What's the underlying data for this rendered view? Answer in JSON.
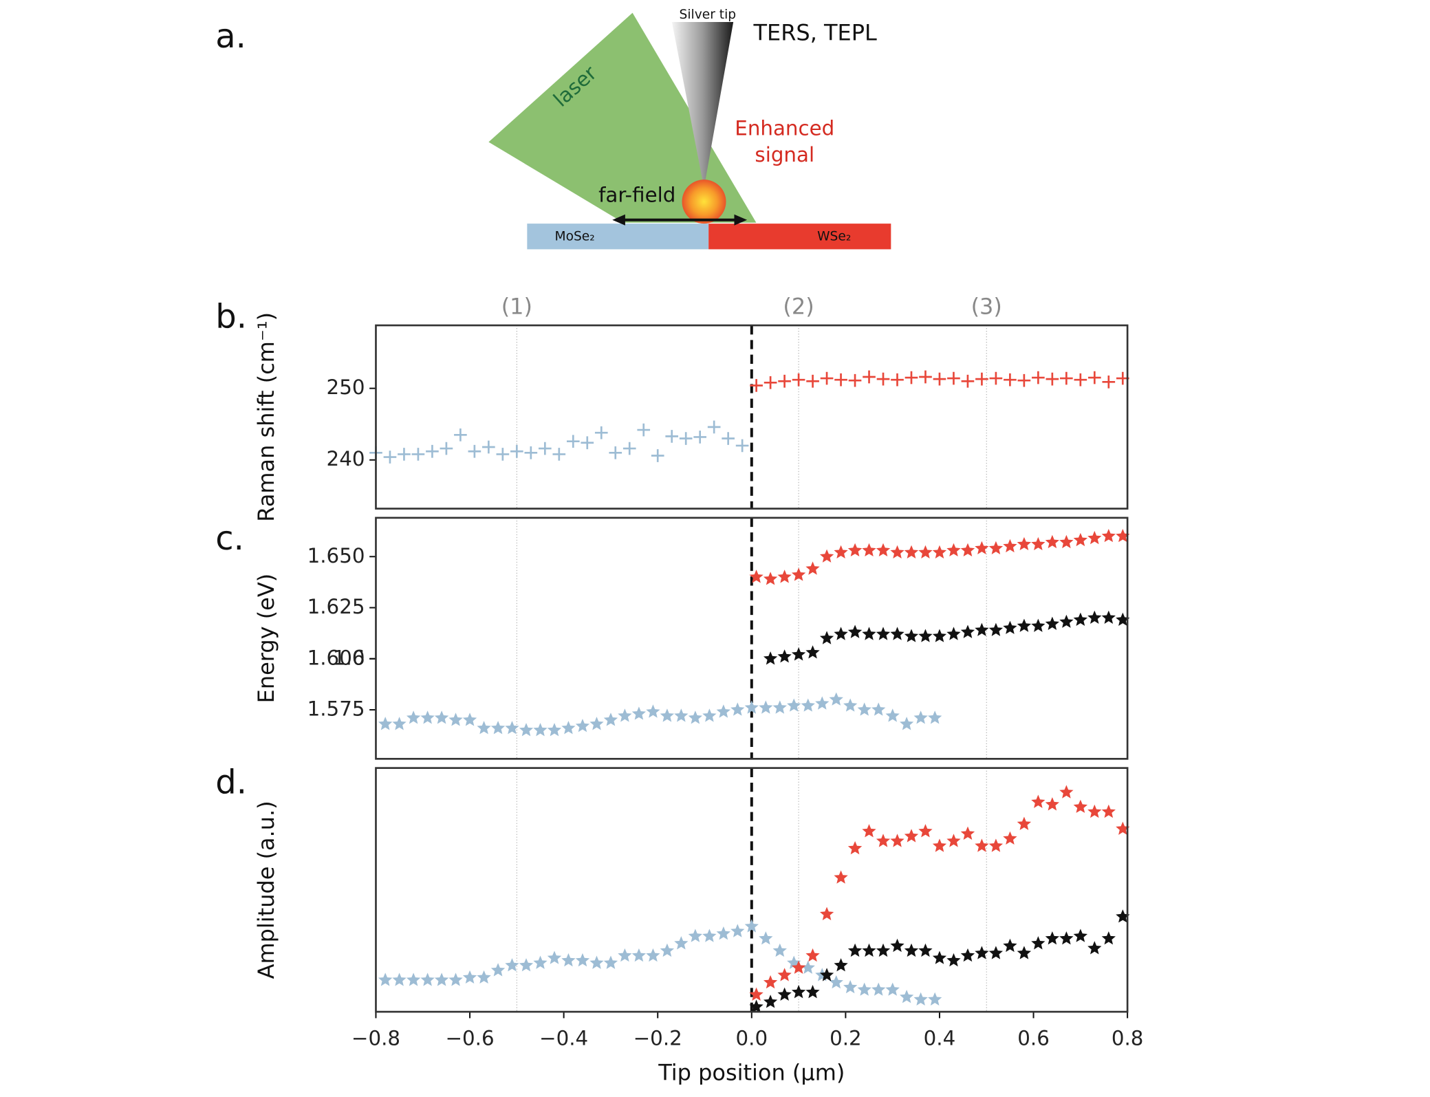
{
  "panel_labels": [
    "a.",
    "b.",
    "c.",
    "d."
  ],
  "diagram": {
    "tip": "Silver tip",
    "method": "TERS, TEPL",
    "laser": "laser",
    "signal": [
      "Enhanced",
      "signal"
    ],
    "far_field": "far-field",
    "left_material": "MoSe₂",
    "right_material": "WSe₂"
  },
  "chart_data": [
    {
      "type": "scatter",
      "ylabel": "Raman shift (cm⁻¹)",
      "xlim": [
        -0.8,
        0.8
      ],
      "ylim": [
        233.2,
        258.8
      ],
      "yticks": [
        240,
        250
      ],
      "guides": [
        -0.5,
        0.1,
        0.5
      ],
      "boundary": 0,
      "regions": [
        {
          "x": -0.5,
          "label": "(1)"
        },
        {
          "x": 0.1,
          "label": "(2)"
        },
        {
          "x": 0.5,
          "label": "(3)"
        }
      ],
      "series": [
        {
          "color": "#9dbcd4",
          "marker": "plus",
          "x": [
            -0.8,
            -0.77,
            -0.74,
            -0.71,
            -0.68,
            -0.65,
            -0.62,
            -0.59,
            -0.56,
            -0.53,
            -0.5,
            -0.47,
            -0.44,
            -0.41,
            -0.38,
            -0.35,
            -0.32,
            -0.29,
            -0.26,
            -0.23,
            -0.2,
            -0.17,
            -0.14,
            -0.11,
            -0.08,
            -0.05,
            -0.02
          ],
          "values": [
            241,
            240.4,
            240.8,
            240.8,
            241.2,
            241.6,
            243.5,
            241.2,
            241.8,
            240.8,
            241.2,
            241.0,
            241.6,
            240.8,
            242.6,
            242.4,
            243.8,
            241.0,
            241.6,
            244.2,
            240.6,
            243.3,
            243.0,
            243.2,
            244.6,
            243.0,
            242.0
          ]
        },
        {
          "color": "#e8473a",
          "marker": "plus",
          "x": [
            0.01,
            0.04,
            0.07,
            0.1,
            0.13,
            0.16,
            0.19,
            0.22,
            0.25,
            0.28,
            0.31,
            0.34,
            0.37,
            0.4,
            0.43,
            0.46,
            0.49,
            0.52,
            0.55,
            0.58,
            0.61,
            0.64,
            0.67,
            0.7,
            0.73,
            0.76,
            0.79
          ],
          "values": [
            250.4,
            250.8,
            251.0,
            251.2,
            251.0,
            251.4,
            251.2,
            251.1,
            251.6,
            251.3,
            251.2,
            251.5,
            251.6,
            251.3,
            251.4,
            251.0,
            251.3,
            251.4,
            251.2,
            251.1,
            251.5,
            251.3,
            251.4,
            251.2,
            251.5,
            250.9,
            251.4
          ]
        }
      ]
    },
    {
      "type": "scatter",
      "ylabel": "Energy (eV)",
      "xlim": [
        -0.8,
        0.8
      ],
      "ylim": [
        1.551,
        1.669
      ],
      "yticks": [
        1.575,
        1.6,
        {
          "value": 1.6,
          "label": "1.600"
        },
        1.625,
        {
          "value": 1.65,
          "label": "1.650"
        }
      ],
      "guides": [
        -0.5,
        0.1,
        0.5
      ],
      "boundary": 0,
      "series": [
        {
          "color": "#9dbcd4",
          "marker": "star",
          "x": [
            -0.78,
            -0.75,
            -0.72,
            -0.69,
            -0.66,
            -0.63,
            -0.6,
            -0.57,
            -0.54,
            -0.51,
            -0.48,
            -0.45,
            -0.42,
            -0.39,
            -0.36,
            -0.33,
            -0.3,
            -0.27,
            -0.24,
            -0.21,
            -0.18,
            -0.15,
            -0.12,
            -0.09,
            -0.06,
            -0.03,
            0,
            0.03,
            0.06,
            0.09,
            0.12,
            0.15,
            0.18,
            0.21,
            0.24,
            0.27,
            0.3,
            0.33,
            0.36,
            0.39
          ],
          "values": [
            1.568,
            1.568,
            1.571,
            1.571,
            1.571,
            1.57,
            1.57,
            1.566,
            1.566,
            1.566,
            1.565,
            1.565,
            1.565,
            1.566,
            1.567,
            1.568,
            1.57,
            1.572,
            1.573,
            1.574,
            1.572,
            1.572,
            1.571,
            1.572,
            1.574,
            1.575,
            1.576,
            1.576,
            1.576,
            1.577,
            1.577,
            1.578,
            1.58,
            1.577,
            1.575,
            1.575,
            1.572,
            1.568,
            1.571,
            1.571
          ]
        },
        {
          "color": "#e8473a",
          "marker": "star",
          "x": [
            0.01,
            0.04,
            0.07,
            0.1,
            0.13,
            0.16,
            0.19,
            0.22,
            0.25,
            0.28,
            0.31,
            0.34,
            0.37,
            0.4,
            0.43,
            0.46,
            0.49,
            0.52,
            0.55,
            0.58,
            0.61,
            0.64,
            0.67,
            0.7,
            0.73,
            0.76,
            0.79
          ],
          "values": [
            1.64,
            1.639,
            1.64,
            1.641,
            1.644,
            1.65,
            1.652,
            1.653,
            1.653,
            1.653,
            1.652,
            1.652,
            1.652,
            1.652,
            1.653,
            1.653,
            1.654,
            1.654,
            1.655,
            1.656,
            1.656,
            1.657,
            1.657,
            1.658,
            1.659,
            1.66,
            1.66
          ]
        },
        {
          "color": "#111111",
          "marker": "star",
          "x": [
            0.04,
            0.07,
            0.1,
            0.13,
            0.16,
            0.19,
            0.22,
            0.25,
            0.28,
            0.31,
            0.34,
            0.37,
            0.4,
            0.43,
            0.46,
            0.49,
            0.52,
            0.55,
            0.58,
            0.61,
            0.64,
            0.67,
            0.7,
            0.73,
            0.76,
            0.79
          ],
          "values": [
            1.6,
            1.601,
            1.602,
            1.603,
            1.61,
            1.612,
            1.613,
            1.612,
            1.612,
            1.612,
            1.611,
            1.611,
            1.611,
            1.612,
            1.613,
            1.614,
            1.614,
            1.615,
            1.616,
            1.616,
            1.617,
            1.618,
            1.619,
            1.62,
            1.62,
            1.619
          ]
        }
      ]
    },
    {
      "type": "scatter",
      "ylabel": "Amplitude (a.u.)",
      "xlabel": "Tip position (μm)",
      "xlim": [
        -0.8,
        0.8
      ],
      "ylim": [
        0,
        1
      ],
      "xticks": [
        {
          "value": -0.8,
          "label": "−0.8"
        },
        {
          "value": -0.6,
          "label": "−0.6"
        },
        {
          "value": -0.4,
          "label": "−0.4"
        },
        {
          "value": -0.2,
          "label": "−0.2"
        },
        {
          "value": 0,
          "label": "0.0"
        },
        0.2,
        0.4,
        0.6,
        0.8
      ],
      "guides": [
        -0.5,
        0.1,
        0.5
      ],
      "boundary": 0,
      "series": [
        {
          "color": "#9dbcd4",
          "marker": "star",
          "x": [
            -0.78,
            -0.75,
            -0.72,
            -0.69,
            -0.66,
            -0.63,
            -0.6,
            -0.57,
            -0.54,
            -0.51,
            -0.48,
            -0.45,
            -0.42,
            -0.39,
            -0.36,
            -0.33,
            -0.3,
            -0.27,
            -0.24,
            -0.21,
            -0.18,
            -0.15,
            -0.12,
            -0.09,
            -0.06,
            -0.03,
            0,
            0.03,
            0.06,
            0.09,
            0.12,
            0.15,
            0.18,
            0.21,
            0.24,
            0.27,
            0.3,
            0.33,
            0.36,
            0.39
          ],
          "values": [
            0.13,
            0.13,
            0.13,
            0.13,
            0.13,
            0.13,
            0.14,
            0.14,
            0.17,
            0.19,
            0.19,
            0.2,
            0.22,
            0.21,
            0.21,
            0.2,
            0.2,
            0.23,
            0.23,
            0.23,
            0.25,
            0.28,
            0.31,
            0.31,
            0.32,
            0.33,
            0.35,
            0.3,
            0.25,
            0.2,
            0.18,
            0.15,
            0.12,
            0.1,
            0.09,
            0.09,
            0.09,
            0.06,
            0.05,
            0.05
          ]
        },
        {
          "color": "#e8473a",
          "marker": "star",
          "x": [
            0.01,
            0.04,
            0.07,
            0.1,
            0.13,
            0.16,
            0.19,
            0.22,
            0.25,
            0.28,
            0.31,
            0.34,
            0.37,
            0.4,
            0.43,
            0.46,
            0.49,
            0.52,
            0.55,
            0.58,
            0.61,
            0.64,
            0.67,
            0.7,
            0.73,
            0.76,
            0.79
          ],
          "values": [
            0.07,
            0.12,
            0.15,
            0.18,
            0.23,
            0.4,
            0.55,
            0.67,
            0.74,
            0.7,
            0.7,
            0.72,
            0.74,
            0.68,
            0.7,
            0.73,
            0.68,
            0.68,
            0.71,
            0.77,
            0.86,
            0.85,
            0.9,
            0.84,
            0.82,
            0.82,
            0.75
          ]
        },
        {
          "color": "#111111",
          "marker": "star",
          "x": [
            0.01,
            0.04,
            0.07,
            0.1,
            0.13,
            0.16,
            0.19,
            0.22,
            0.25,
            0.28,
            0.31,
            0.34,
            0.37,
            0.4,
            0.43,
            0.46,
            0.49,
            0.52,
            0.55,
            0.58,
            0.61,
            0.64,
            0.67,
            0.7,
            0.73,
            0.76,
            0.79
          ],
          "values": [
            0.02,
            0.04,
            0.07,
            0.08,
            0.08,
            0.15,
            0.19,
            0.25,
            0.25,
            0.25,
            0.27,
            0.25,
            0.25,
            0.22,
            0.21,
            0.23,
            0.24,
            0.24,
            0.27,
            0.24,
            0.28,
            0.3,
            0.3,
            0.31,
            0.26,
            0.3,
            0.39
          ]
        }
      ]
    }
  ]
}
